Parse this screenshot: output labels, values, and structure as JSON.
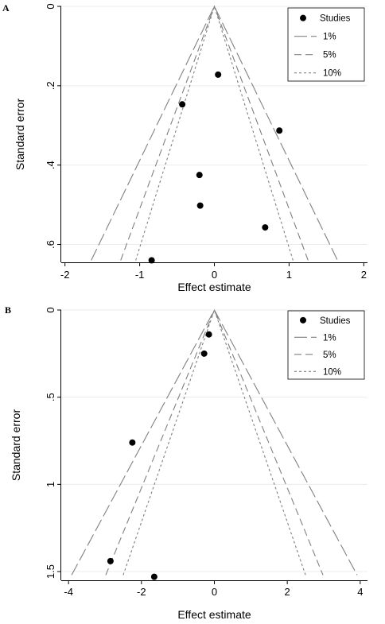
{
  "chart_data": [
    {
      "panel_label": "A",
      "type": "scatter",
      "subtype": "funnel-plot",
      "xlabel": "Effect estimate",
      "ylabel": "Standard error",
      "xlim": [
        -2.05,
        2.05
      ],
      "ylim": [
        0,
        0.645
      ],
      "y_reversed": true,
      "x_ticks": [
        -2,
        -1,
        0,
        1,
        2
      ],
      "x_tick_labels": [
        "-2",
        "-1",
        "0",
        "1",
        "2"
      ],
      "y_ticks": [
        0,
        0.2,
        0.4,
        0.6
      ],
      "y_tick_labels": [
        "0",
        ".2",
        ".4",
        ".6"
      ],
      "grid": "horizontal",
      "legend_position": "top-right",
      "series": [
        {
          "name": "Studies",
          "marker": "circle",
          "points": [
            {
              "x": 0.05,
              "y": 0.172
            },
            {
              "x": -0.43,
              "y": 0.247
            },
            {
              "x": 0.87,
              "y": 0.313
            },
            {
              "x": -0.2,
              "y": 0.425
            },
            {
              "x": -0.19,
              "y": 0.502
            },
            {
              "x": 0.68,
              "y": 0.557
            },
            {
              "x": -0.84,
              "y": 0.64
            }
          ]
        }
      ],
      "contours": [
        {
          "name": "1%",
          "z": 2.576,
          "style": "long-dash"
        },
        {
          "name": "5%",
          "z": 1.96,
          "style": "dash"
        },
        {
          "name": "10%",
          "z": 1.645,
          "style": "short-dash"
        }
      ],
      "contour_se_max": 0.64
    },
    {
      "panel_label": "B",
      "type": "scatter",
      "subtype": "funnel-plot",
      "xlabel": "Effect estimate",
      "ylabel": "Standard error",
      "xlim": [
        -4.2,
        4.2
      ],
      "ylim": [
        0,
        1.55
      ],
      "y_reversed": true,
      "x_ticks": [
        -4,
        -2,
        0,
        2,
        4
      ],
      "x_tick_labels": [
        "-4",
        "-2",
        "0",
        "2",
        "4"
      ],
      "y_ticks": [
        0,
        0.5,
        1,
        1.5
      ],
      "y_tick_labels": [
        "0",
        ".5",
        "1",
        "1.5"
      ],
      "grid": "horizontal",
      "legend_position": "top-right",
      "series": [
        {
          "name": "Studies",
          "marker": "circle",
          "points": [
            {
              "x": -0.15,
              "y": 0.14
            },
            {
              "x": -0.28,
              "y": 0.25
            },
            {
              "x": -2.25,
              "y": 0.76
            },
            {
              "x": -2.85,
              "y": 1.44
            },
            {
              "x": -1.65,
              "y": 1.53
            }
          ]
        }
      ],
      "contours": [
        {
          "name": "1%",
          "z": 2.576,
          "style": "long-dash"
        },
        {
          "name": "5%",
          "z": 1.96,
          "style": "dash"
        },
        {
          "name": "10%",
          "z": 1.645,
          "style": "short-dash"
        }
      ],
      "contour_se_max": 1.52
    }
  ],
  "colors": {
    "plot_background": "#ffffff",
    "grid": "#e8ecef",
    "contour_lines": "#808080",
    "points": "#000000",
    "axes": "#000000"
  }
}
